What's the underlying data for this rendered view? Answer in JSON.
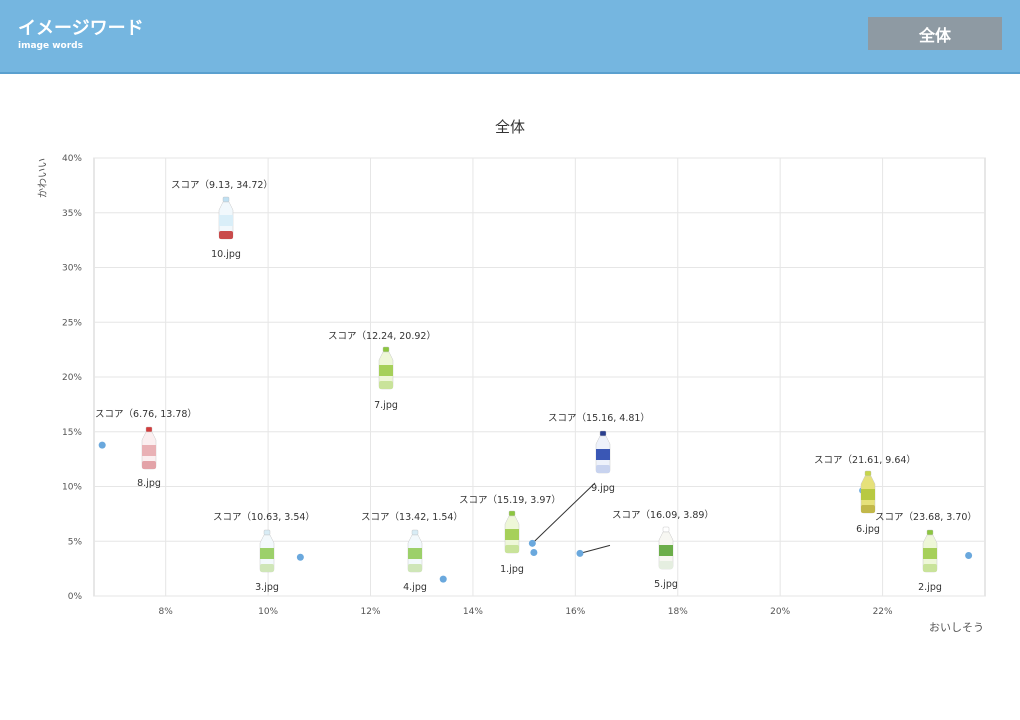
{
  "header": {
    "title": "イメージワード",
    "subtitle": "image words",
    "filter_label": "全体"
  },
  "colors": {
    "header_bg": "#75b6e0",
    "button_bg": "#8e9aa3",
    "point": "#6aa8dd",
    "grid": "#e6e6e6"
  },
  "chart_data": {
    "type": "scatter",
    "title": "全体",
    "xlabel": "おいしそう",
    "ylabel": "かわいい",
    "xlim": [
      6.6,
      24.0
    ],
    "ylim": [
      0,
      40
    ],
    "xticks": [
      8,
      10,
      12,
      14,
      16,
      18,
      20,
      22
    ],
    "yticks": [
      0,
      5,
      10,
      15,
      20,
      25,
      30,
      35,
      40
    ],
    "xtick_labels": [
      "8%",
      "10%",
      "12%",
      "14%",
      "16%",
      "18%",
      "20%",
      "22%"
    ],
    "ytick_labels": [
      "0%",
      "5%",
      "10%",
      "15%",
      "20%",
      "25%",
      "30%",
      "35%",
      "40%"
    ],
    "grid": true,
    "points": [
      {
        "x": 15.19,
        "y": 3.97,
        "label": "スコア（15.19, 3.97）",
        "file": "1.jpg",
        "bottle": "green-pet"
      },
      {
        "x": 23.68,
        "y": 3.7,
        "label": "スコア（23.68, 3.70）",
        "file": "2.jpg",
        "bottle": "green-pet"
      },
      {
        "x": 10.63,
        "y": 3.54,
        "label": "スコア（10.63, 3.54）",
        "file": "3.jpg",
        "bottle": "clear-green"
      },
      {
        "x": 13.42,
        "y": 1.54,
        "label": "スコア（13.42, 1.54）",
        "file": "4.jpg",
        "bottle": "clear-green"
      },
      {
        "x": 16.09,
        "y": 3.89,
        "label": "スコア（16.09, 3.89）",
        "file": "5.jpg",
        "bottle": "white-green"
      },
      {
        "x": 21.61,
        "y": 9.64,
        "label": "スコア（21.61, 9.64）",
        "file": "6.jpg",
        "bottle": "yellow-green"
      },
      {
        "x": 12.24,
        "y": 20.92,
        "label": "スコア（12.24, 20.92）",
        "file": "7.jpg",
        "bottle": "green-pet"
      },
      {
        "x": 6.76,
        "y": 13.78,
        "label": "スコア（6.76, 13.78）",
        "file": "8.jpg",
        "bottle": "red-pet"
      },
      {
        "x": 15.16,
        "y": 4.81,
        "label": "スコア（15.16, 4.81）",
        "file": "9.jpg",
        "bottle": "blue-pet"
      },
      {
        "x": 9.13,
        "y": 34.72,
        "label": "スコア（9.13, 34.72）",
        "file": "10.jpg",
        "bottle": "clear-red"
      }
    ]
  }
}
